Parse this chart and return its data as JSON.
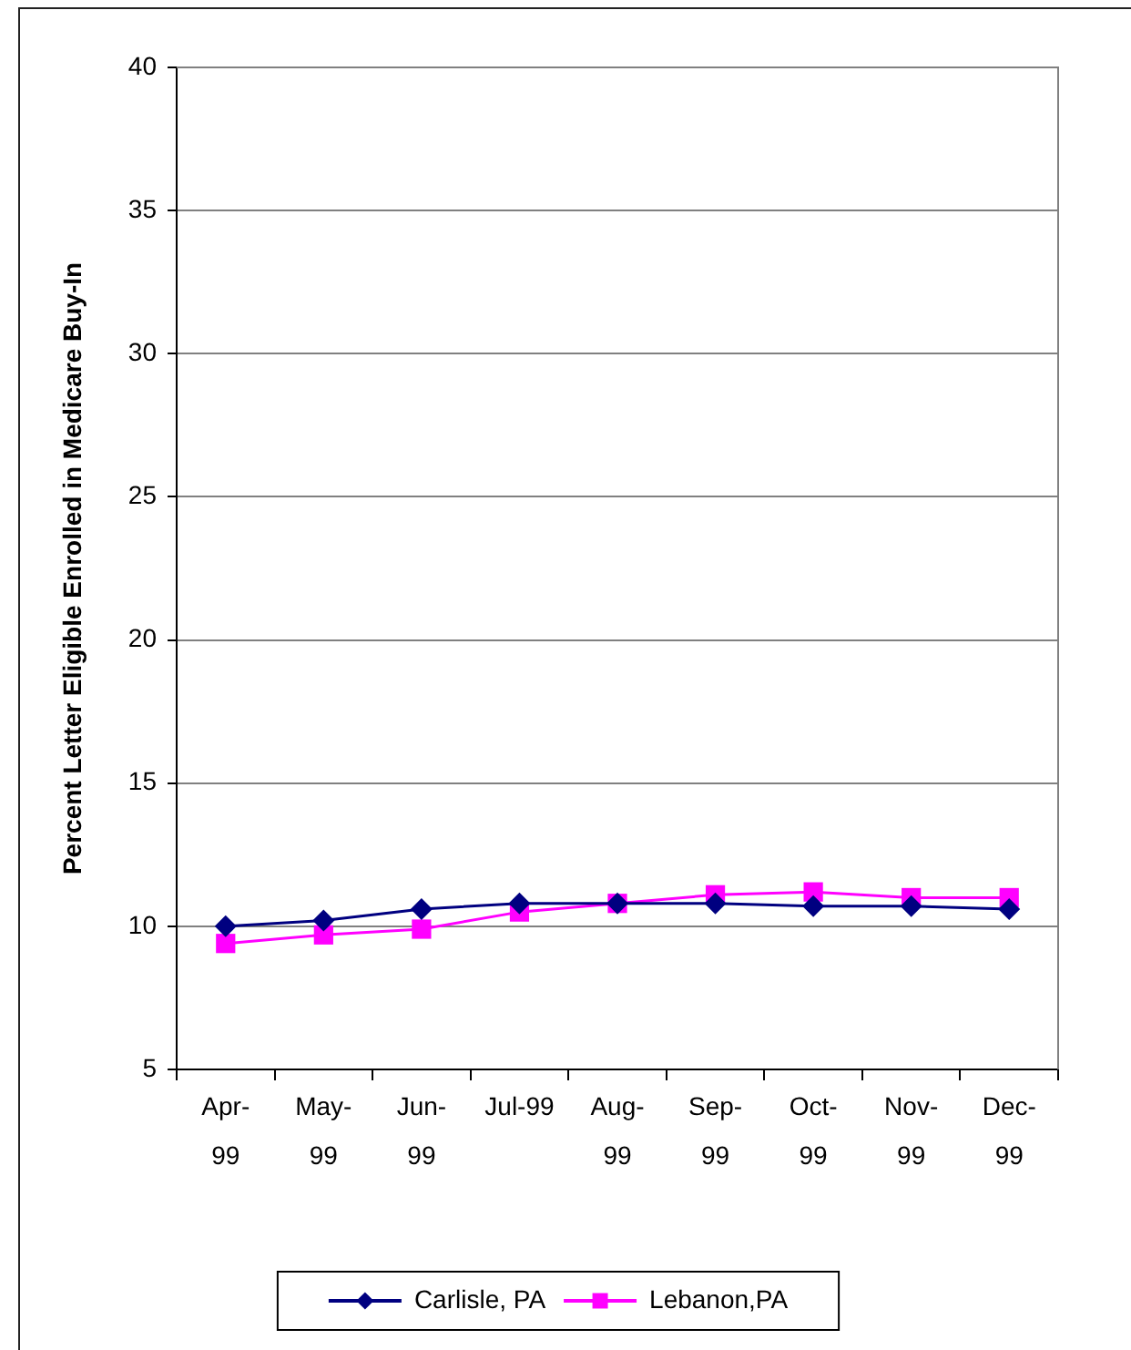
{
  "chart_data": {
    "type": "line",
    "categories": [
      "Apr-99",
      "May-99",
      "Jun-99",
      "Jul-99",
      "Aug-99",
      "Sep-99",
      "Oct-99",
      "Nov-99",
      "Dec-99"
    ],
    "series": [
      {
        "name": "Carlisle, PA",
        "color": "#000080",
        "marker": "diamond",
        "values": [
          10.0,
          10.2,
          10.6,
          10.8,
          10.8,
          10.8,
          10.7,
          10.7,
          10.6
        ]
      },
      {
        "name": "Lebanon,PA",
        "color": "#ff00ff",
        "marker": "square",
        "values": [
          9.4,
          9.7,
          9.9,
          10.5,
          10.8,
          11.1,
          11.2,
          11.0,
          11.0
        ]
      }
    ],
    "ylabel": "Percent Letter Eligible Enrolled in Medicare Buy-In",
    "ylim": [
      5,
      40
    ],
    "yticks": [
      5,
      10,
      15,
      20,
      25,
      30,
      35,
      40
    ],
    "grid": "y",
    "legend": "bottom"
  }
}
